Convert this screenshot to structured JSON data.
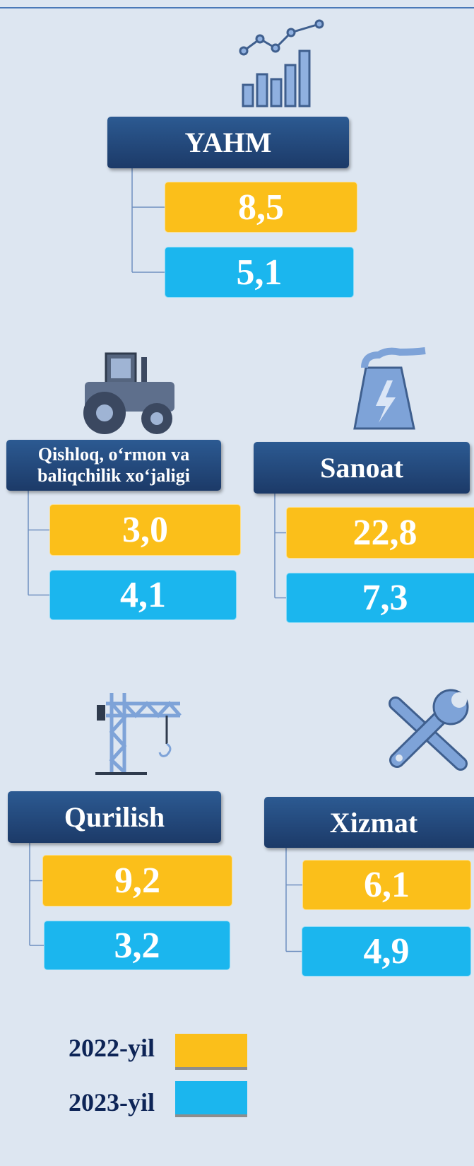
{
  "sections": [
    {
      "title": "YAHM",
      "values": [
        "8,5",
        "5,1"
      ]
    },
    {
      "title": "Qishloq, o‘rmon va baliqchilik xo‘jaligi",
      "values": [
        "3,0",
        "4,1"
      ]
    },
    {
      "title": "Sanoat",
      "values": [
        "22,8",
        "7,3"
      ]
    },
    {
      "title": "Qurilish",
      "values": [
        "9,2",
        "3,2"
      ]
    },
    {
      "title": "Xizmat",
      "values": [
        "6,1",
        "4,9"
      ]
    }
  ],
  "legend": [
    {
      "label": "2022-yil",
      "color": "#fbbf1a"
    },
    {
      "label": "2023-yil",
      "color": "#1bb6ee"
    }
  ]
}
